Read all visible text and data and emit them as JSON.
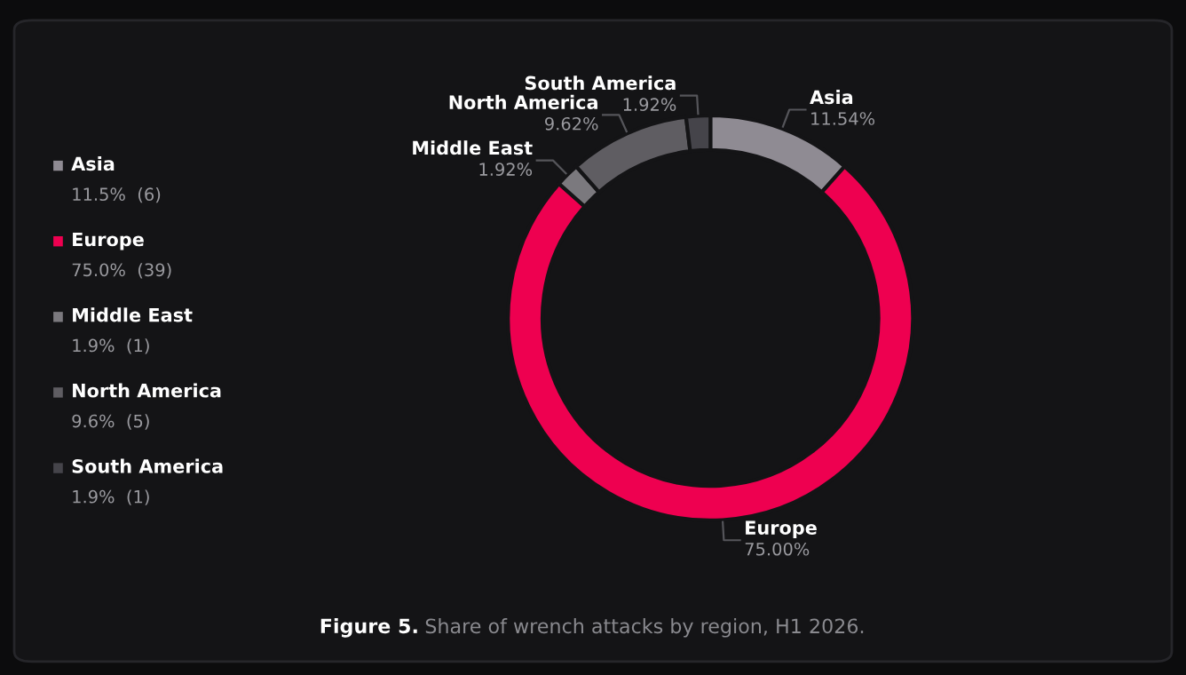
{
  "chart_data": {
    "type": "donut",
    "categories": [
      "Asia",
      "Europe",
      "Middle East",
      "North America",
      "South America"
    ],
    "values": [
      11.54,
      75.0,
      1.92,
      9.62,
      1.92
    ],
    "value_labels": [
      "11.54%",
      "75.00%",
      "1.92%",
      "9.62%",
      "1.92%"
    ],
    "colors": [
      "#8f8b93",
      "#ee0050",
      "#7b797e",
      "#5f5d62",
      "#45444a"
    ],
    "legend": "left",
    "annotations": [
      "Figure 5. Share of wrench attacks by region, H1 2026.",
      "11.5%  (6)",
      "75.0%  (39)",
      "1.9%  (1)",
      "9.6%  (5)",
      "1.9%  (1)"
    ]
  }
}
